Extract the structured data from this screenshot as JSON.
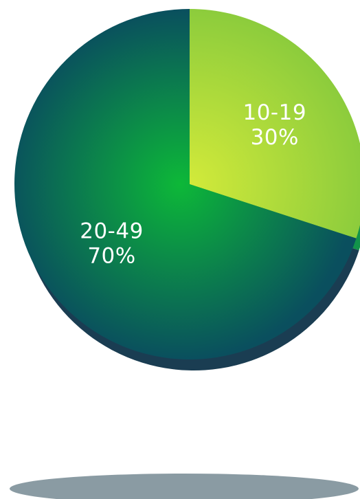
{
  "chart_data": {
    "type": "pie",
    "title": "",
    "legend": "none",
    "slices": [
      {
        "category": "10-19",
        "percent_label": "30%",
        "value": 30,
        "colors": [
          "#d2ea3a",
          "#8ccc3c"
        ],
        "side_color": "#12934a"
      },
      {
        "category": "20-49",
        "percent_label": "70%",
        "value": 70,
        "colors": [
          "#0db838",
          "#0a4f5e"
        ],
        "side_color": "#1a3d52"
      }
    ]
  },
  "colors": {
    "shadow": "#8a9ba3",
    "background": "#ffffff"
  }
}
